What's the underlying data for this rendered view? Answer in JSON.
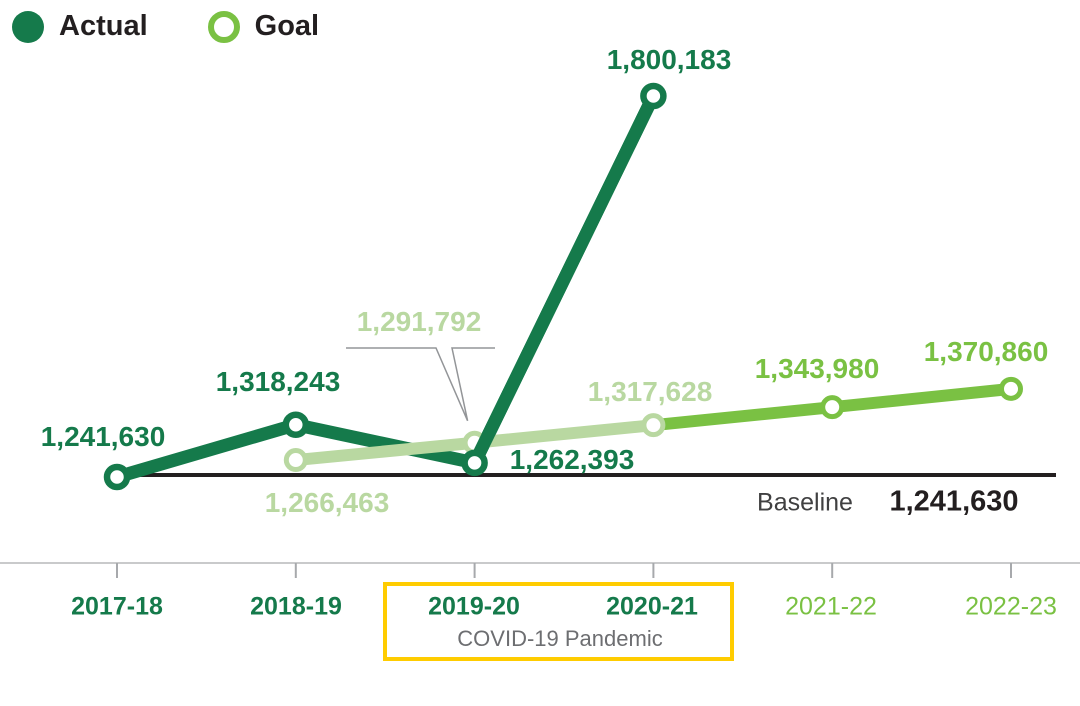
{
  "legend": {
    "actual_label": "Actual",
    "goal_label": "Goal"
  },
  "chart_data": {
    "type": "line",
    "title": "",
    "xlabel": "",
    "ylabel": "",
    "categories": [
      "2017-18",
      "2018-19",
      "2019-20",
      "2020-21",
      "2021-22",
      "2022-23"
    ],
    "series": [
      {
        "name": "Actual",
        "values": [
          1241630,
          1318243,
          1262393,
          1800183,
          null,
          null
        ],
        "labels": [
          "1,241,630",
          "1,318,243",
          "1,262,393",
          "1,800,183"
        ],
        "color": "#157a4b"
      },
      {
        "name": "Goal",
        "values": [
          null,
          1266463,
          1291792,
          1317628,
          1343980,
          1370860
        ],
        "labels": [
          "1,266,463",
          "1,291,792",
          "1,317,628",
          "1,343,980",
          "1,370,860"
        ],
        "color_past": "#b9d8a1",
        "color_future": "#7ac143"
      }
    ],
    "baseline": {
      "label": "Baseline",
      "value": 1241630,
      "value_label": "1,241,630"
    },
    "annotation": {
      "label": "COVID-19 Pandemic",
      "covered_categories": [
        "2019-20",
        "2020-21"
      ]
    },
    "ylim": [
      1241630,
      1800183
    ],
    "grid": false,
    "legend_position": "top-left"
  },
  "colors": {
    "actual": "#157a4b",
    "goal_past": "#b9d8a1",
    "goal_future": "#7ac143",
    "baseline": "#231f20",
    "axis_line": "#c9cacb",
    "tick": "#a7a9ac",
    "annotation_box": "#ffcc00",
    "annotation_text": "#6d6e71",
    "callout": "#939598",
    "text": "#231f20"
  }
}
